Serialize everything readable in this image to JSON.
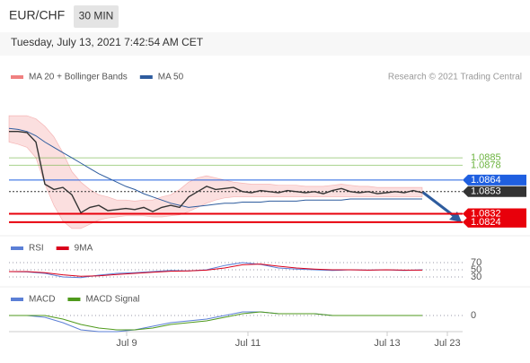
{
  "header": {
    "symbol": "EUR/CHF",
    "interval": "30 MIN",
    "timestamp": "Tuesday, July 13, 2021 7:42:54 AM CET"
  },
  "credit": "Research © 2021 Trading Central",
  "x_labels": [
    "Jul 9",
    "Jul 11",
    "Jul 13",
    "Jul 23"
  ],
  "chart_data": [
    {
      "type": "line",
      "ylim": [
        1.0812,
        1.0954
      ],
      "band": {
        "name": "MA 20 + Bollinger Bands",
        "color": "#f08080",
        "upper": [
          1.0925,
          1.0925,
          1.0925,
          1.0922,
          1.0915,
          1.0905,
          1.089,
          1.0872,
          1.0862,
          1.0855,
          1.085,
          1.0848,
          1.0845,
          1.0845,
          1.0844,
          1.0845,
          1.0845,
          1.0848,
          1.085,
          1.0855,
          1.0862,
          1.0866,
          1.0868,
          1.0866,
          1.0864,
          1.0862,
          1.0861,
          1.086,
          1.086,
          1.086,
          1.0859,
          1.0859,
          1.0859,
          1.0858,
          1.0858,
          1.0858,
          1.0859,
          1.086,
          1.0859,
          1.0858,
          1.0858,
          1.0857,
          1.0857,
          1.0857,
          1.0857,
          1.0857,
          1.0857
        ],
        "lower": [
          1.09,
          1.0898,
          1.0895,
          1.0885,
          1.086,
          1.084,
          1.0825,
          1.0818,
          1.0818,
          1.0822,
          1.0826,
          1.0828,
          1.0829,
          1.083,
          1.083,
          1.083,
          1.0829,
          1.0829,
          1.083,
          1.0831,
          1.0834,
          1.0838,
          1.0842,
          1.0845,
          1.0847,
          1.0848,
          1.0848,
          1.0848,
          1.0848,
          1.0848,
          1.0848,
          1.0848,
          1.0848,
          1.0848,
          1.0848,
          1.0848,
          1.0848,
          1.0848,
          1.0848,
          1.0848,
          1.0848,
          1.0848,
          1.0848,
          1.0848,
          1.0848,
          1.0848,
          1.0848
        ]
      },
      "series": [
        {
          "name": "MA 50",
          "color": "#2e5c9e",
          "values": [
            1.0913,
            1.0912,
            1.091,
            1.0906,
            1.09,
            1.0895,
            1.089,
            1.0885,
            1.088,
            1.0875,
            1.087,
            1.0866,
            1.0862,
            1.0858,
            1.0855,
            1.0851,
            1.0848,
            1.0845,
            1.0842,
            1.084,
            1.0838,
            1.0839,
            1.084,
            1.0841,
            1.0842,
            1.0842,
            1.0843,
            1.0843,
            1.0843,
            1.0844,
            1.0844,
            1.0844,
            1.0844,
            1.0845,
            1.0845,
            1.0845,
            1.0845,
            1.0845,
            1.0846,
            1.0846,
            1.0846,
            1.0846,
            1.0846,
            1.0846,
            1.0846,
            1.0846,
            1.0846
          ]
        },
        {
          "color": "#333333",
          "values": [
            1.091,
            1.091,
            1.0909,
            1.09,
            1.086,
            1.0855,
            1.0857,
            1.085,
            1.0833,
            1.0838,
            1.084,
            1.0835,
            1.0836,
            1.0837,
            1.0836,
            1.0838,
            1.0834,
            1.0838,
            1.084,
            1.0838,
            1.0848,
            1.0853,
            1.0858,
            1.0855,
            1.0856,
            1.0857,
            1.0853,
            1.0852,
            1.0854,
            1.0853,
            1.0852,
            1.0854,
            1.0853,
            1.0852,
            1.0853,
            1.0851,
            1.0854,
            1.0856,
            1.0853,
            1.0852,
            1.0853,
            1.0851,
            1.0852,
            1.0853,
            1.0852,
            1.0854,
            1.0852
          ]
        }
      ],
      "levels": [
        {
          "value": 1.0885,
          "color": "#6cb33f",
          "style": "text"
        },
        {
          "value": 1.0878,
          "color": "#6cb33f",
          "style": "text"
        },
        {
          "value": 1.0864,
          "color": "#1f5fe0",
          "style": "box"
        },
        {
          "value": 1.0853,
          "color": "#333333",
          "style": "box"
        },
        {
          "value": 1.0832,
          "color": "#e8000b",
          "style": "box"
        },
        {
          "value": 1.0824,
          "color": "#e8000b",
          "style": "box"
        }
      ]
    },
    {
      "type": "line",
      "ylim": [
        0,
        100
      ],
      "yticks": [
        70,
        50,
        30
      ],
      "series": [
        {
          "name": "RSI",
          "color": "#5b7fd6",
          "values": [
            45,
            44,
            40,
            30,
            28,
            35,
            40,
            42,
            45,
            48,
            47,
            50,
            62,
            70,
            65,
            55,
            52,
            50,
            48,
            50,
            49,
            50,
            48,
            50
          ]
        },
        {
          "name": "9MA",
          "color": "#d9001b",
          "values": [
            45,
            45,
            42,
            36,
            32,
            33,
            37,
            40,
            43,
            46,
            47,
            49,
            55,
            64,
            66,
            60,
            55,
            52,
            50,
            50,
            49,
            50,
            49,
            49
          ]
        }
      ]
    },
    {
      "type": "line",
      "ylim": [
        -0.0012,
        0.0012
      ],
      "yticks": [
        0
      ],
      "series": [
        {
          "name": "MACD",
          "color": "#5b7fd6",
          "values": [
            0,
            0,
            -0.0001,
            -0.0004,
            -0.0008,
            -0.0009,
            -0.0009,
            -0.0008,
            -0.0006,
            -0.0004,
            -0.0003,
            -0.0002,
            0,
            0.0002,
            0.0002,
            0.0001,
            0.0001,
            0.0001,
            0,
            0,
            0,
            0,
            0,
            0
          ]
        },
        {
          "name": "MACD Signal",
          "color": "#4f9a1c",
          "values": [
            0,
            0,
            0,
            -0.0002,
            -0.0005,
            -0.0007,
            -0.0008,
            -0.0008,
            -0.0007,
            -0.0005,
            -0.0004,
            -0.0003,
            -0.0001,
            0.0001,
            0.0002,
            0.0001,
            0.0001,
            0.0001,
            0,
            0,
            0,
            0,
            0,
            0
          ]
        }
      ]
    }
  ]
}
